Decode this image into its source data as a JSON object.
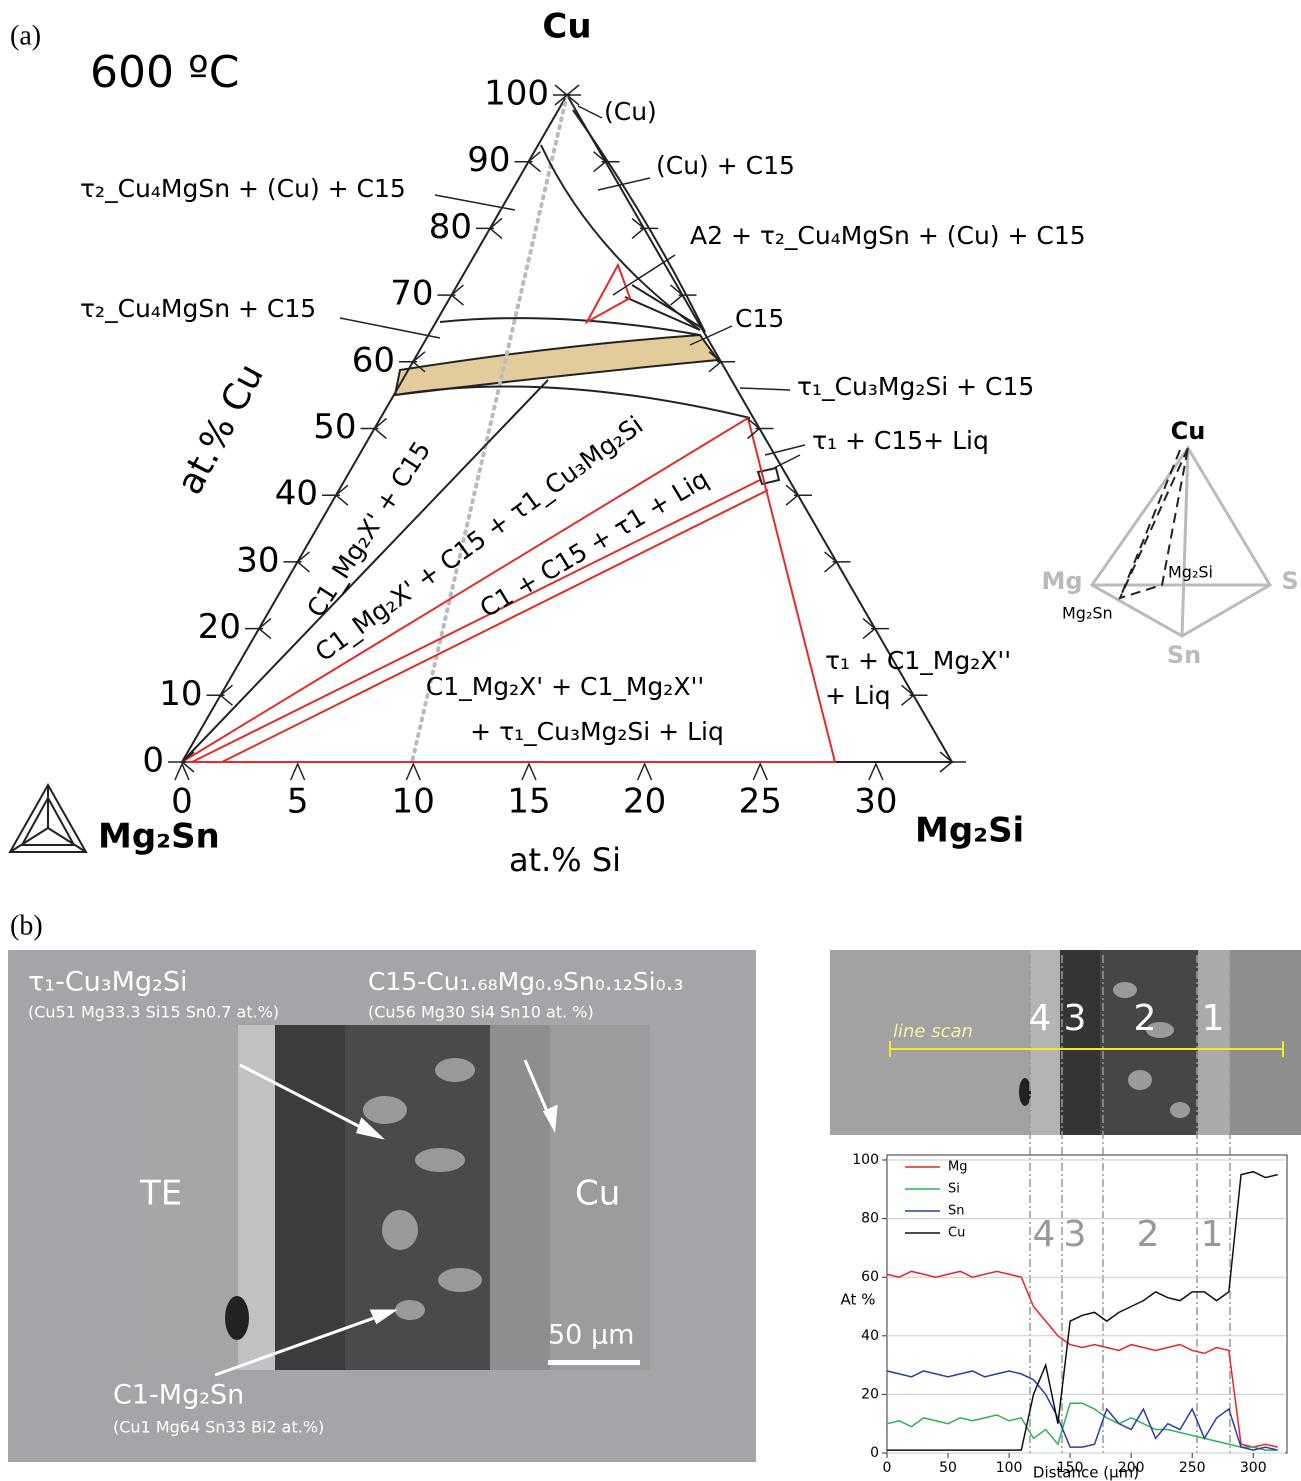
{
  "panel_a": {
    "label": "(a)",
    "temperature": "600 ºC",
    "apex_top": "Cu",
    "corner_left": "Mg₂Sn",
    "corner_right": "Mg₂Si",
    "x_axis_label": "at.% Si",
    "y_axis_label": "at.% Cu",
    "cu_ticks": [
      0,
      10,
      20,
      30,
      40,
      50,
      60,
      70,
      80,
      90,
      100
    ],
    "si_ticks": [
      0,
      5,
      10,
      15,
      20,
      25,
      30
    ],
    "regions": [
      "(Cu)",
      "(Cu) + C15",
      "τ₂_Cu₄MgSn + (Cu) + C15",
      "A2 + τ₂_Cu₄MgSn + (Cu) + C15",
      "τ₂_Cu₄MgSn + C15",
      "C15",
      "τ₁_Cu₃Mg₂Si + C15",
      "τ₁ + C15+ Liq",
      "C1_Mg₂X' + C15",
      "C1_Mg₂X' + C15 + τ1_Cu₃Mg₂Si",
      "C1 + C15 + τ1 + Liq",
      "C1_Mg₂X' + C1_Mg₂X''",
      "+ τ₁_Cu₃Mg₂Si + Liq",
      "τ₁ + C1_Mg₂X''",
      "+ Liq"
    ],
    "pyramid": {
      "top": "Cu",
      "left": "Mg",
      "right": "S",
      "bottom": "Sn",
      "inner_right": "Mg₂Si",
      "inner_left": "Mg₂Sn"
    }
  },
  "panel_b": {
    "label": "(b)",
    "micrograph": {
      "phase_1": "τ₁-Cu₃Mg₂Si",
      "phase_1_comp": "(Cu51 Mg33.3 Si15 Sn0.7 at.%)",
      "phase_2": "C15-Cu₁.₆₈Mg₀.₉Sn₀.₁₂Si₀.₃",
      "phase_2_comp": "(Cu56 Mg30 Si4 Sn10 at. %)",
      "phase_3": "C1-Mg₂Sn",
      "phase_3_comp": "(Cu1 Mg64 Sn33 Bi2 at.%)",
      "left": "TE",
      "right": "Cu",
      "scale": "50 µm"
    },
    "line_scan": {
      "label": "line scan",
      "zones": [
        "4",
        "3",
        "2",
        "1"
      ]
    }
  },
  "chart_data": {
    "type": "line",
    "x_label": "Distance (µm)",
    "y_label": "At %",
    "zone_labels": [
      "4",
      "3",
      "2",
      "1"
    ],
    "x": [
      0,
      10,
      20,
      30,
      40,
      50,
      60,
      70,
      80,
      90,
      100,
      110,
      120,
      130,
      140,
      150,
      160,
      170,
      180,
      190,
      200,
      210,
      220,
      230,
      240,
      250,
      260,
      270,
      280,
      290,
      300,
      310,
      320
    ],
    "series": [
      {
        "name": "Mg",
        "color": "#e8262a",
        "values": [
          61,
          60,
          62,
          61,
          60,
          61,
          62,
          60,
          61,
          62,
          61,
          60,
          50,
          45,
          40,
          37,
          36,
          37,
          36,
          35,
          37,
          36,
          35,
          36,
          37,
          35,
          34,
          36,
          35,
          3,
          2,
          3,
          2
        ]
      },
      {
        "name": "Si",
        "color": "#2fb25a",
        "values": [
          10,
          11,
          9,
          12,
          11,
          10,
          12,
          11,
          12,
          13,
          11,
          12,
          5,
          8,
          3,
          17,
          17,
          15,
          12,
          10,
          12,
          10,
          8,
          8,
          7,
          6,
          5,
          4,
          3,
          2,
          2,
          1,
          1
        ]
      },
      {
        "name": "Sn",
        "color": "#2b3f9e",
        "values": [
          28,
          27,
          26,
          28,
          27,
          26,
          27,
          28,
          26,
          27,
          28,
          27,
          25,
          20,
          12,
          2,
          2,
          3,
          15,
          10,
          8,
          15,
          5,
          10,
          8,
          15,
          5,
          12,
          15,
          2,
          1,
          2,
          1
        ]
      },
      {
        "name": "Cu",
        "color": "#111111",
        "values": [
          1,
          1,
          1,
          1,
          1,
          1,
          1,
          1,
          1,
          1,
          1,
          1,
          20,
          30,
          10,
          45,
          47,
          48,
          45,
          48,
          50,
          52,
          55,
          53,
          52,
          55,
          55,
          52,
          55,
          95,
          96,
          94,
          95
        ]
      }
    ],
    "xlim": [
      0,
      326
    ],
    "ylim": [
      0,
      100
    ],
    "xticks": [
      0,
      50,
      100,
      150,
      200,
      250,
      300
    ],
    "yticks": [
      0,
      20,
      40,
      60,
      80,
      100
    ],
    "grid": true
  }
}
